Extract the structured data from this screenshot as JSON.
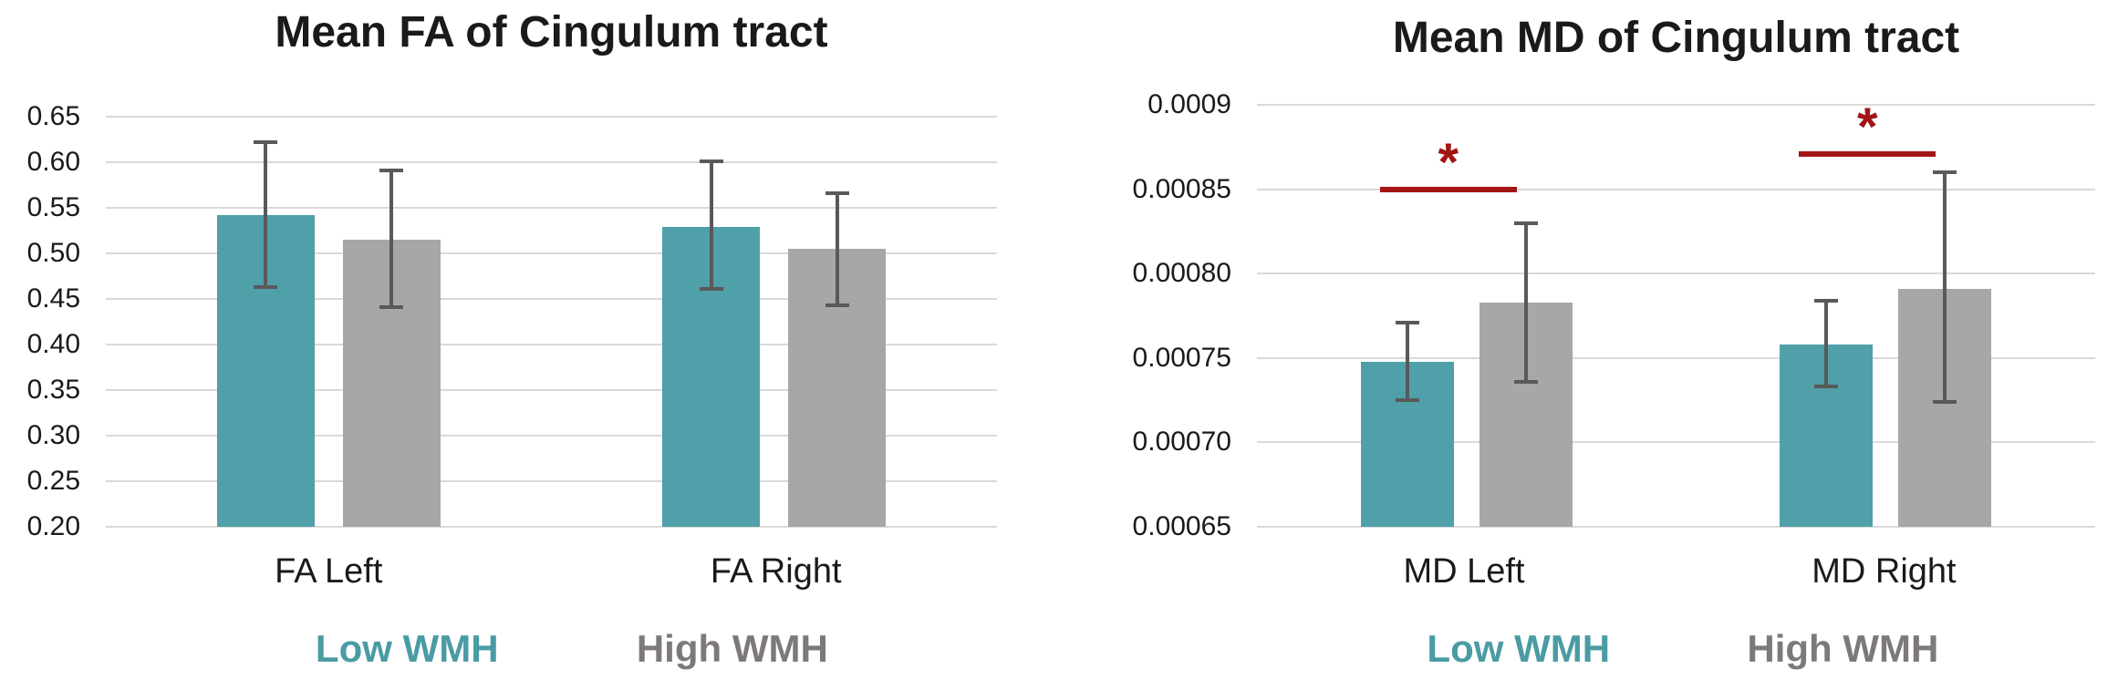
{
  "colors": {
    "teal_bar": "#4FA0A8",
    "gray_bar": "#A7A7A7",
    "error_bar": "#595959",
    "gridline": "#D9D9D9",
    "significance_red": "#A31515",
    "legend_teal_text": "#4A9BA4",
    "legend_gray_text": "#7E7979",
    "text": "#1A1A1A"
  },
  "chart_data": [
    {
      "type": "bar",
      "title": "Mean FA of Cingulum tract",
      "categories": [
        "FA Left",
        "FA Right"
      ],
      "series": [
        {
          "name": "Low WMH",
          "color": "#4FA0A8",
          "values": [
            0.542,
            0.529
          ],
          "error_low": [
            0.463,
            0.461
          ],
          "error_high": [
            0.622,
            0.601
          ]
        },
        {
          "name": "High WMH",
          "color": "#A7A7A7",
          "values": [
            0.515,
            0.505
          ],
          "error_low": [
            0.441,
            0.443
          ],
          "error_high": [
            0.591,
            0.566
          ]
        }
      ],
      "ylim": [
        0.2,
        0.65
      ],
      "ytick_labels": [
        "0.65",
        "0.60",
        "0.55",
        "0.50",
        "0.45",
        "0.40",
        "0.35",
        "0.30",
        "0.25",
        "0.20"
      ],
      "grid": true,
      "legend_position": "bottom",
      "significance": []
    },
    {
      "type": "bar",
      "title": "Mean MD of Cingulum tract",
      "categories": [
        "MD Left",
        "MD Right"
      ],
      "series": [
        {
          "name": "Low WMH",
          "color": "#4FA0A8",
          "values": [
            0.000748,
            0.000758
          ],
          "error_low": [
            0.000725,
            0.000733
          ],
          "error_high": [
            0.000771,
            0.000784
          ]
        },
        {
          "name": "High WMH",
          "color": "#A7A7A7",
          "values": [
            0.000783,
            0.000791
          ],
          "error_low": [
            0.000736,
            0.000724
          ],
          "error_high": [
            0.00083,
            0.00086
          ]
        }
      ],
      "ylim": [
        0.00065,
        0.0009
      ],
      "ytick_labels": [
        "0.0009",
        "0.00085",
        "0.00080",
        "0.00075",
        "0.00070",
        "0.00065"
      ],
      "grid": true,
      "legend_position": "bottom",
      "significance": [
        {
          "category": "MD Left",
          "label": "*",
          "level": 0.00085
        },
        {
          "category": "MD Right",
          "label": "*",
          "level": 0.000871
        }
      ]
    }
  ]
}
